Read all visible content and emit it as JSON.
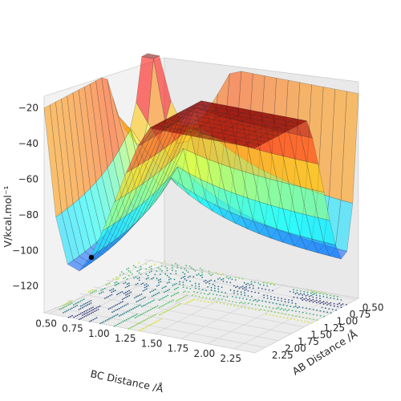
{
  "chart_data": {
    "type": "surface3d",
    "title": "",
    "xlabel": "BC Distance /Å",
    "ylabel": "AB Distance /Å",
    "zlabel": "V/kcal.mol⁻¹",
    "x_ticks": [
      "0.50",
      "0.75",
      "1.00",
      "1.25",
      "1.50",
      "1.75",
      "2.00",
      "2.25"
    ],
    "y_ticks": [
      "0.50",
      "0.75",
      "1.00",
      "1.25",
      "1.50",
      "1.75",
      "2.00",
      "2.25"
    ],
    "z_ticks": [
      "−20",
      "−40",
      "−60",
      "−80",
      "−100",
      "−120"
    ],
    "xlim": [
      0.45,
      2.45
    ],
    "ylim": [
      0.45,
      2.45
    ],
    "zlim": [
      -135,
      -18
    ],
    "grid": true,
    "surface_colormap": "jet",
    "contour_colormap": "viridis",
    "marker": {
      "bc_distance": 0.8,
      "ab_distance": 2.25,
      "energy": -103,
      "color": "#000000"
    },
    "potential_surface": [
      {
        "ab": 2.25,
        "bc": 0.74,
        "energy": -103
      },
      {
        "ab": 0.74,
        "bc": 2.25,
        "energy": -103
      },
      {
        "ab": 1.25,
        "bc": 1.25,
        "energy": -30
      }
    ]
  }
}
